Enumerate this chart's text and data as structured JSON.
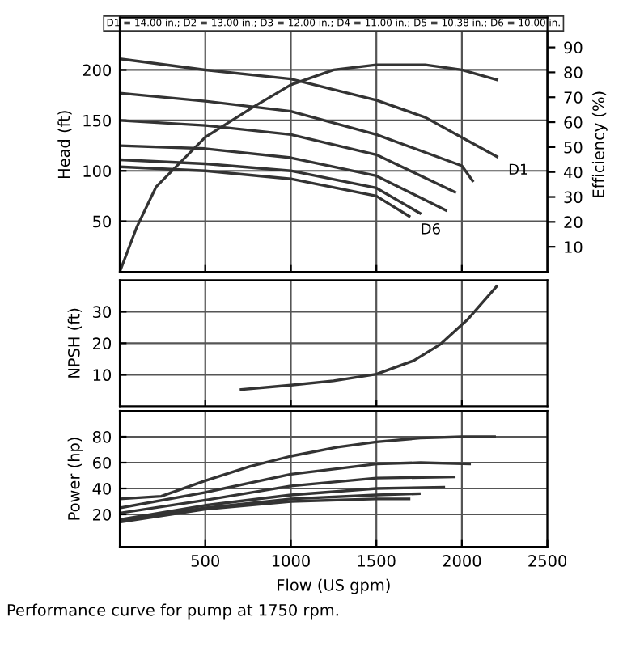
{
  "chart_data": [
    {
      "type": "line",
      "subtitle": "D1 = 14.00 in.; D2 = 13.00 in.; D3 = 12.00 in.; D4 = 11.00 in.; D5 = 10.38 in.; D6 = 10.00 in.",
      "ylabel": "Head (ft)",
      "y2label": "Efficiency (%)",
      "xlim": [
        0,
        2500
      ],
      "ylim": [
        0,
        252
      ],
      "yticks": [
        50,
        100,
        150,
        200
      ],
      "y2lim": [
        0,
        102
      ],
      "y2ticks": [
        10,
        20,
        30,
        40,
        50,
        60,
        70,
        80,
        90
      ],
      "xticks": [
        {
          "value": 500,
          "label": null
        },
        {
          "value": 1000,
          "label": null
        },
        {
          "value": 1500,
          "label": null
        },
        {
          "value": 2000,
          "label": null
        }
      ],
      "grid": true,
      "tick_labels": "y",
      "series": [
        {
          "name": "D1",
          "color": "#333333",
          "x": [
            0,
            500,
            1000,
            1500,
            1786,
            2000,
            2205
          ],
          "values": [
            211,
            200,
            191,
            170,
            153,
            133,
            114
          ]
        },
        {
          "color": "#333333",
          "x": [
            0,
            500,
            1000,
            1500,
            2000,
            2063
          ],
          "values": [
            177,
            169,
            159,
            136,
            105,
            90
          ]
        },
        {
          "color": "#333333",
          "x": [
            0,
            500,
            1000,
            1500,
            1959
          ],
          "values": [
            150,
            145,
            136,
            116,
            79
          ]
        },
        {
          "color": "#333333",
          "x": [
            0,
            500,
            1000,
            1500,
            1906
          ],
          "values": [
            125,
            122,
            113,
            95,
            61
          ]
        },
        {
          "color": "#333333",
          "x": [
            0,
            500,
            1000,
            1500,
            1755
          ],
          "values": [
            111,
            107,
            100,
            83,
            58
          ]
        },
        {
          "name": "D6",
          "color": "#333333",
          "x": [
            0,
            500,
            1000,
            1500,
            1692
          ],
          "values": [
            104,
            100,
            92,
            75,
            55
          ]
        },
        {
          "color": "#333333",
          "axis": "y2",
          "x": [
            0,
            100,
            212,
            500,
            778,
            1000,
            1250,
            1500,
            1629,
            1786,
            2000,
            2205
          ],
          "values": [
            0,
            18,
            34,
            54,
            66,
            75,
            81,
            83,
            83,
            83,
            81,
            77
          ]
        }
      ]
    },
    {
      "type": "line",
      "ylabel": "NPSH (ft)",
      "xlim": [
        0,
        2500
      ],
      "ylim": [
        0,
        40
      ],
      "yticks": [
        10,
        20,
        30
      ],
      "xticks": [
        {
          "value": 500,
          "label": null
        },
        {
          "value": 1000,
          "label": null
        },
        {
          "value": 1500,
          "label": null
        },
        {
          "value": 2000,
          "label": null
        }
      ],
      "grid": true,
      "tick_labels": "y",
      "series": [
        {
          "color": "#333333",
          "x": [
            709,
            1000,
            1250,
            1500,
            1719,
            1875,
            2031,
            2203
          ],
          "values": [
            5.3,
            6.7,
            8.1,
            10.2,
            14.5,
            19.7,
            27.4,
            38
          ]
        }
      ]
    },
    {
      "type": "line",
      "ylabel": "Power (hp)",
      "xlabel": "Flow (US gpm)",
      "xlim": [
        0,
        2500
      ],
      "ylim": [
        -5,
        100
      ],
      "yticks": [
        20,
        40,
        60,
        80
      ],
      "xticks": [
        500,
        1000,
        1500,
        2000,
        2500
      ],
      "grid": true,
      "annotations": [
        "Performance curve for pump at 1750 rpm."
      ],
      "series": [
        {
          "color": "#333333",
          "x": [
            0,
            242,
            500,
            758,
            1000,
            1273,
            1500,
            1758,
            2000,
            2191
          ],
          "values": [
            32,
            34,
            46,
            57,
            65,
            72,
            76,
            79,
            80,
            80
          ]
        },
        {
          "color": "#333333",
          "x": [
            0,
            500,
            1000,
            1500,
            1758,
            2045
          ],
          "values": [
            25,
            37,
            51,
            59,
            60,
            59
          ]
        },
        {
          "color": "#333333",
          "x": [
            0,
            500,
            1000,
            1500,
            1955
          ],
          "values": [
            21,
            31,
            42,
            48,
            49
          ]
        },
        {
          "color": "#333333",
          "x": [
            0,
            500,
            1000,
            1500,
            1894
          ],
          "values": [
            16,
            27,
            35,
            40,
            41
          ]
        },
        {
          "color": "#333333",
          "x": [
            0,
            500,
            1000,
            1500,
            1751
          ],
          "values": [
            15,
            25,
            32,
            35,
            36
          ]
        },
        {
          "color": "#333333",
          "x": [
            0,
            500,
            1000,
            1500,
            1691
          ],
          "values": [
            14,
            24,
            30,
            32,
            32
          ]
        }
      ]
    }
  ]
}
